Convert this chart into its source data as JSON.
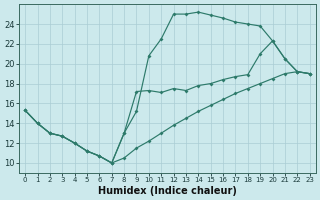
{
  "xlabel": "Humidex (Indice chaleur)",
  "bg_color": "#cce9ec",
  "line_color": "#2d7a6a",
  "grid_color": "#aacdd5",
  "xlim_min": -0.5,
  "xlim_max": 23.5,
  "ylim_min": 9,
  "ylim_max": 26,
  "xticks": [
    0,
    1,
    2,
    3,
    4,
    5,
    6,
    7,
    8,
    9,
    10,
    11,
    12,
    13,
    14,
    15,
    16,
    17,
    18,
    19,
    20,
    21,
    22,
    23
  ],
  "yticks": [
    10,
    12,
    14,
    16,
    18,
    20,
    22,
    24
  ],
  "curve1_x": [
    0,
    1,
    2,
    3,
    4,
    5,
    6,
    7,
    8,
    9,
    10,
    11,
    12,
    13,
    14,
    15,
    16,
    17,
    18,
    19,
    20,
    21,
    22,
    23
  ],
  "curve1_y": [
    15.3,
    14.0,
    13.0,
    12.7,
    12.0,
    11.2,
    10.7,
    10.0,
    13.0,
    15.2,
    20.8,
    22.5,
    25.0,
    25.0,
    25.2,
    24.9,
    24.6,
    24.2,
    24.0,
    23.8,
    22.3,
    20.5,
    19.2,
    19.0
  ],
  "curve2_x": [
    0,
    1,
    2,
    3,
    4,
    5,
    6,
    7,
    8,
    9,
    10,
    11,
    12,
    13,
    14,
    15,
    16,
    17,
    18,
    19,
    20,
    21,
    22,
    23
  ],
  "curve2_y": [
    15.3,
    14.0,
    13.0,
    12.7,
    12.0,
    11.2,
    10.7,
    10.0,
    10.5,
    11.5,
    12.2,
    13.0,
    13.8,
    14.5,
    15.2,
    15.8,
    16.4,
    17.0,
    17.5,
    18.0,
    18.5,
    19.0,
    19.2,
    19.0
  ],
  "curve3_x": [
    0,
    1,
    2,
    3,
    4,
    5,
    6,
    7,
    8,
    9,
    10,
    11,
    12,
    13,
    14,
    15,
    16,
    17,
    18,
    19,
    20,
    21,
    22,
    23
  ],
  "curve3_y": [
    15.3,
    14.0,
    13.0,
    12.7,
    12.0,
    11.2,
    10.7,
    10.0,
    13.0,
    17.2,
    17.3,
    17.1,
    17.5,
    17.3,
    17.8,
    18.0,
    18.4,
    18.7,
    18.9,
    21.0,
    22.3,
    20.5,
    19.2,
    19.0
  ]
}
